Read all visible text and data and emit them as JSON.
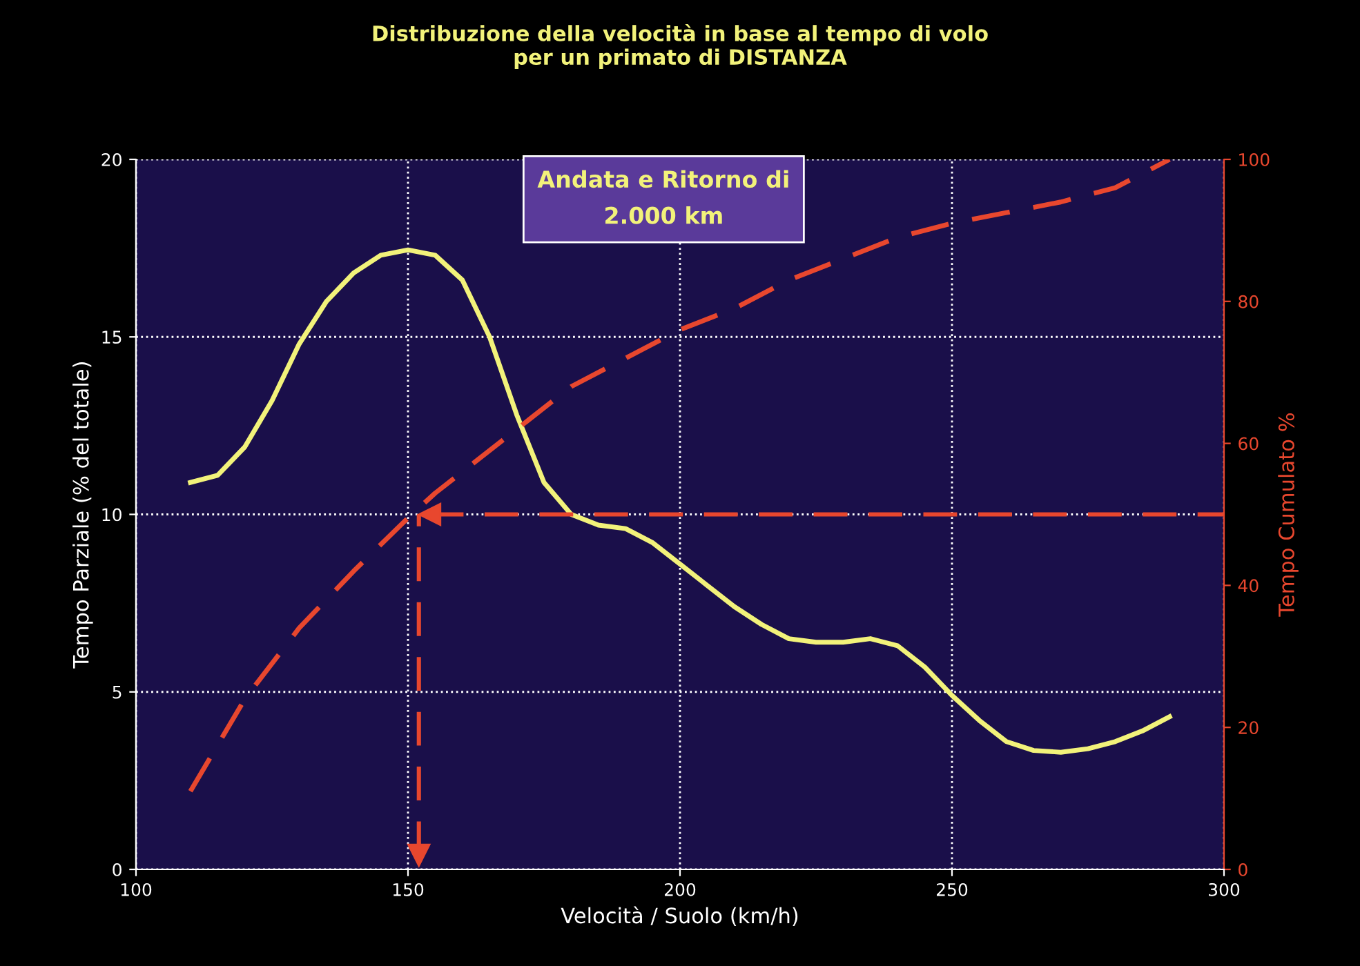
{
  "chart_data": {
    "type": "line",
    "title": "Distribuzione della velocità in base al tempo di volo\nper un primato di DISTANZA",
    "xlabel": "Velocità / Suolo (km/h)",
    "ylabel": "Tempo Parziale (% del totale)",
    "y2label": "Tempo Cumulato %",
    "annotations": [
      "Andata e Ritorno di\n2.000 km"
    ],
    "series": [
      {
        "color": "#f2f27a",
        "line_style": "solid",
        "x": [
          110,
          115,
          120,
          125,
          130,
          135,
          140,
          145,
          150,
          155,
          160,
          165,
          170,
          175,
          180,
          185,
          190,
          195,
          200,
          205,
          210,
          215,
          220,
          225,
          230,
          235,
          240,
          245,
          250,
          255,
          260,
          265,
          270,
          275,
          280,
          285,
          290
        ],
        "values": [
          10.9,
          11.1,
          11.9,
          13.2,
          14.8,
          16.0,
          16.8,
          17.3,
          17.45,
          17.3,
          16.6,
          15.0,
          12.8,
          10.9,
          10.0,
          9.7,
          9.6,
          9.2,
          8.6,
          8.0,
          7.4,
          6.9,
          6.5,
          6.4,
          6.4,
          6.5,
          6.3,
          5.7,
          4.9,
          4.2,
          3.6,
          3.35,
          3.3,
          3.4,
          3.6,
          3.9,
          4.3
        ]
      },
      {
        "color": "#e8472e",
        "line_style": "dashed",
        "axis": "y2",
        "x": [
          110,
          120,
          130,
          140,
          150,
          155,
          160,
          170,
          180,
          190,
          200,
          210,
          220,
          230,
          240,
          250,
          260,
          270,
          280,
          290
        ],
        "values": [
          11,
          24,
          34,
          42,
          49.5,
          53,
          56,
          62,
          68,
          72,
          76,
          79,
          83,
          86,
          89,
          91,
          92.5,
          94,
          96,
          100
        ]
      }
    ],
    "ref_lines": [
      {
        "axis": "y2",
        "value": 50,
        "color": "#e8472e",
        "line_style": "dashed"
      },
      {
        "axis": "x",
        "value": 152,
        "color": "#e8472e",
        "line_style": "dashed"
      }
    ],
    "xlim": [
      100,
      300
    ],
    "xticks": [
      100,
      150,
      200,
      250,
      300
    ],
    "ylim": [
      0,
      20
    ],
    "yticks": [
      0,
      5,
      10,
      15,
      20
    ],
    "y2lim": [
      0,
      100
    ],
    "y2ticks": [
      0,
      20,
      40,
      60,
      80,
      100
    ],
    "grid": true,
    "legend": false,
    "marker": "none"
  }
}
